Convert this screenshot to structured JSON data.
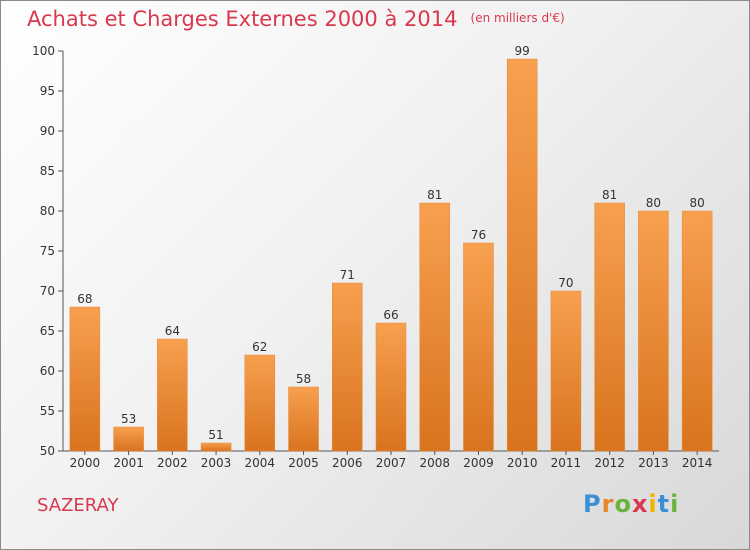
{
  "header": {
    "title": "Achats et Charges Externes 2000 à 2014",
    "unit": "(en milliers d'€)"
  },
  "footer": {
    "commune": "SAZERAY",
    "logo": "Proxiti",
    "logo_letters": [
      "P",
      "r",
      "o",
      "x",
      "i",
      "t",
      "i"
    ],
    "logo_colors": [
      "#3b8fd6",
      "#e8862a",
      "#6ab43e",
      "#d9384e",
      "#f0b400",
      "#3b8fd6",
      "#6ab43e"
    ]
  },
  "colors": {
    "bar_light": "#f7a04f",
    "bar_dark": "#d9731e",
    "title": "#d9384e",
    "axis": "#555555"
  },
  "chart_data": {
    "type": "bar",
    "title": "Achats et Charges Externes 2000 à 2014",
    "subtitle": "(en milliers d'€)",
    "xlabel": "",
    "ylabel": "",
    "categories": [
      "2000",
      "2001",
      "2002",
      "2003",
      "2004",
      "2005",
      "2006",
      "2007",
      "2008",
      "2009",
      "2010",
      "2011",
      "2012",
      "2013",
      "2014"
    ],
    "values": [
      68,
      53,
      64,
      51,
      62,
      58,
      71,
      66,
      81,
      76,
      99,
      70,
      81,
      80,
      80
    ],
    "ylim": [
      50,
      100
    ],
    "yticks": [
      50,
      55,
      60,
      65,
      70,
      75,
      80,
      85,
      90,
      95,
      100
    ],
    "grid": false,
    "legend": "none"
  }
}
